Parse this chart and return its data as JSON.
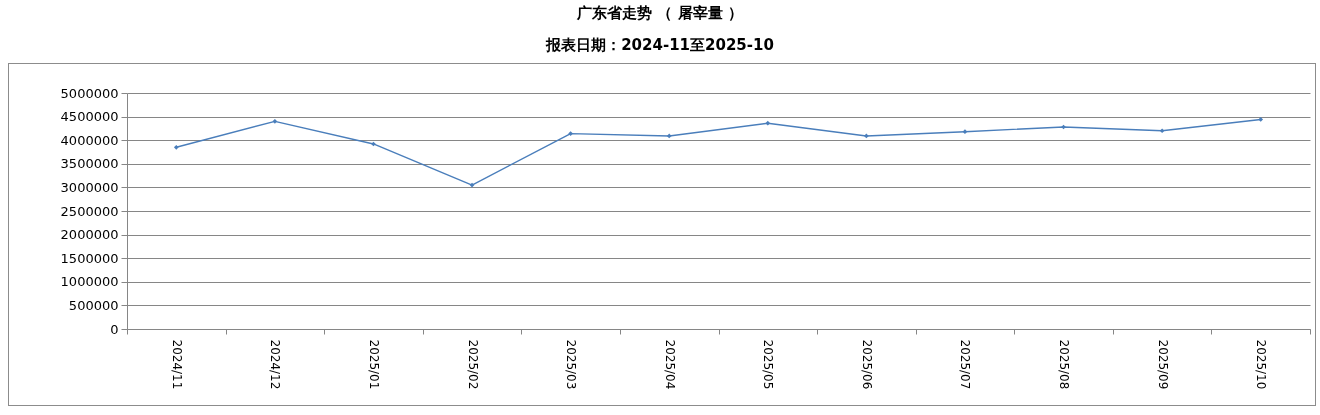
{
  "chart_data": {
    "type": "line",
    "title": "广东省走势 （ 屠宰量 ）",
    "subtitle": "报表日期：2024-11至2025-10",
    "categories": [
      "2024/11",
      "2024/12",
      "2025/01",
      "2025/02",
      "2025/03",
      "2025/04",
      "2025/05",
      "2025/06",
      "2025/07",
      "2025/08",
      "2025/09",
      "2025/10"
    ],
    "series": [
      {
        "color": "#4a7ebb",
        "values": [
          3850000,
          4400000,
          3920000,
          3050000,
          4140000,
          4090000,
          4360000,
          4090000,
          4180000,
          4280000,
          4200000,
          4440000
        ]
      }
    ],
    "ylim": [
      0,
      5000000
    ],
    "yticks": [
      0,
      500000,
      1000000,
      1500000,
      2000000,
      2500000,
      3000000,
      3500000,
      4000000,
      4500000,
      5000000
    ],
    "grid": "y",
    "marker": "diamond",
    "line_style": "solid"
  }
}
